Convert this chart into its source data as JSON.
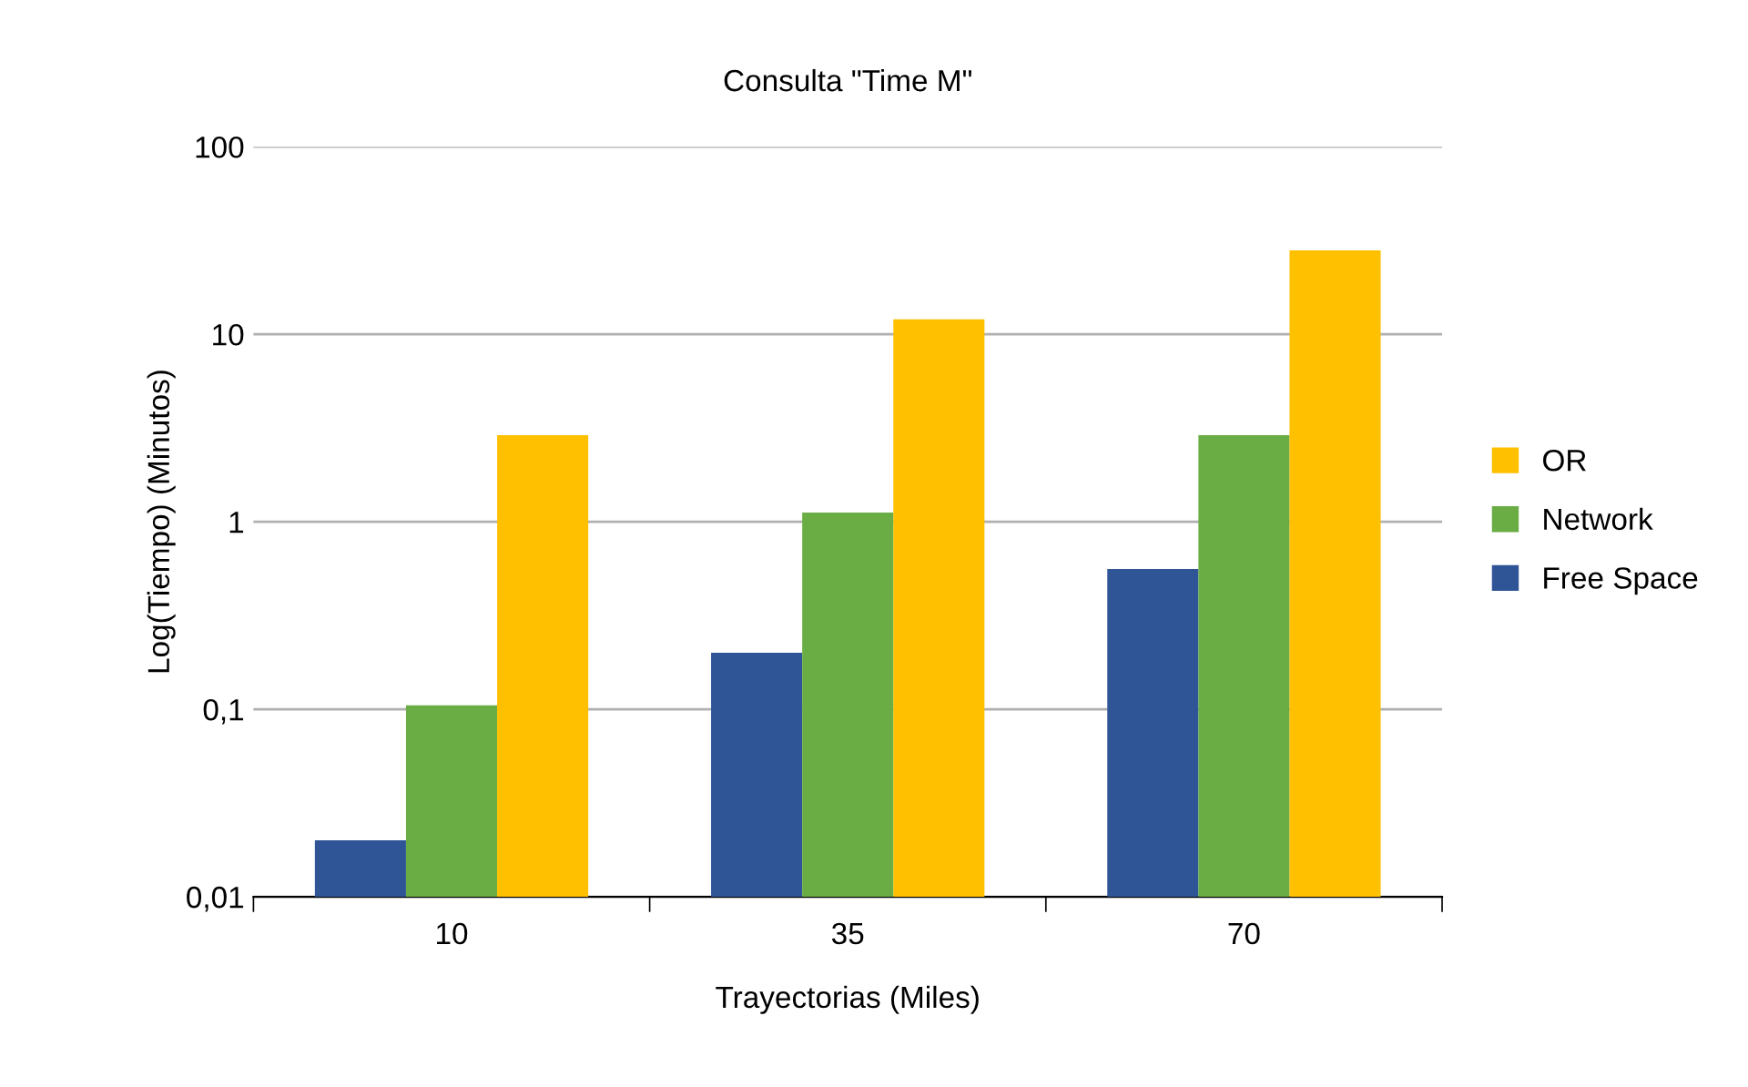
{
  "chart_data": {
    "type": "bar",
    "title": "Consulta \"Time M\"",
    "xlabel": "Trayectorias (Miles)",
    "ylabel": "Log(Tiempo) (Minutos)",
    "categories": [
      "10",
      "35",
      "70"
    ],
    "series": [
      {
        "name": "Free Space",
        "color": "#2f5597",
        "values": [
          0.02,
          0.2,
          0.56
        ]
      },
      {
        "name": "Network",
        "color": "#6aad45",
        "values": [
          0.105,
          1.12,
          2.9
        ]
      },
      {
        "name": "OR",
        "color": "#ffc000",
        "values": [
          2.9,
          12,
          28
        ]
      }
    ],
    "log": "y",
    "ylim": [
      0.01,
      100
    ],
    "yticks": [
      {
        "value": 0.01,
        "label": "0,01"
      },
      {
        "value": 0.1,
        "label": "0,1"
      },
      1,
      10,
      100
    ],
    "grid": "y",
    "legend": "right"
  }
}
